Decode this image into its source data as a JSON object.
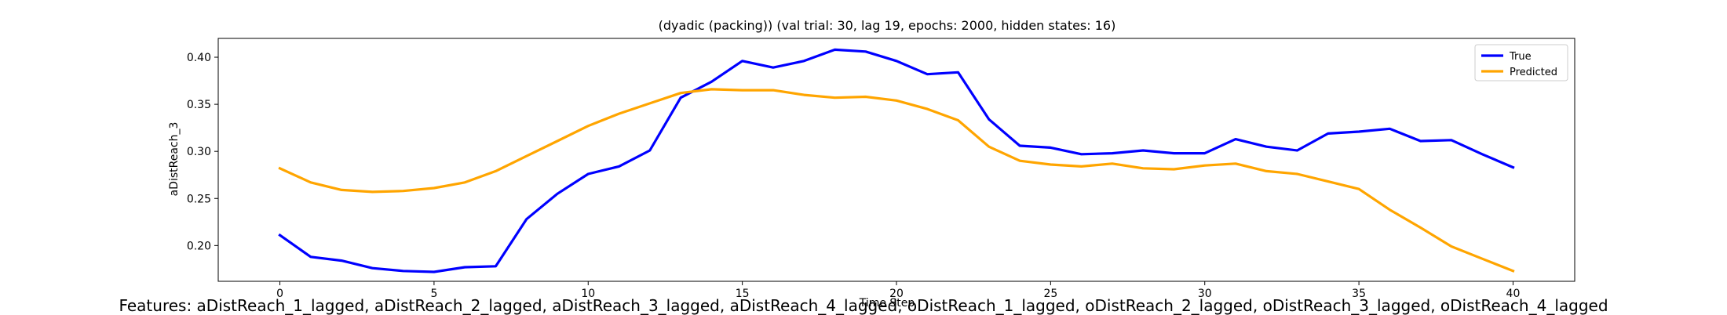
{
  "chart_data": {
    "type": "line",
    "title": "(dyadic (packing)) (val trial: 30, lag 19, epochs: 2000, hidden states: 16)",
    "xlabel": "Time Step",
    "ylabel": "aDistReach_3",
    "xlim": [
      -2,
      42
    ],
    "ylim": [
      0.162,
      0.42
    ],
    "xticks": [
      0,
      5,
      10,
      15,
      20,
      25,
      30,
      35,
      40
    ],
    "xtick_labels": [
      "0",
      "5",
      "10",
      "15",
      "20",
      "25",
      "30",
      "35",
      "40"
    ],
    "yticks": [
      0.2,
      0.25,
      0.3,
      0.35,
      0.4
    ],
    "ytick_labels": [
      "0.20",
      "0.25",
      "0.30",
      "0.35",
      "0.40"
    ],
    "grid": false,
    "legend_position": "top-right",
    "x": [
      0,
      1,
      2,
      3,
      4,
      5,
      6,
      7,
      8,
      9,
      10,
      11,
      12,
      13,
      14,
      15,
      16,
      17,
      18,
      19,
      20,
      21,
      22,
      23,
      24,
      25,
      26,
      27,
      28,
      29,
      30,
      31,
      32,
      33,
      34,
      35,
      36,
      37,
      38,
      39,
      40
    ],
    "series": [
      {
        "name": "True",
        "color": "#0000ff",
        "values": [
          0.211,
          0.188,
          0.184,
          0.176,
          0.173,
          0.172,
          0.177,
          0.178,
          0.228,
          0.255,
          0.276,
          0.284,
          0.301,
          0.357,
          0.374,
          0.396,
          0.389,
          0.396,
          0.408,
          0.406,
          0.396,
          0.382,
          0.384,
          0.334,
          0.306,
          0.304,
          0.297,
          0.298,
          0.301,
          0.298,
          0.298,
          0.313,
          0.305,
          0.301,
          0.319,
          0.321,
          0.324,
          0.311,
          0.312,
          0.297,
          0.283
        ]
      },
      {
        "name": "Predicted",
        "color": "#ffa500",
        "values": [
          0.282,
          0.267,
          0.259,
          0.257,
          0.258,
          0.261,
          0.267,
          0.279,
          0.295,
          0.311,
          0.327,
          0.34,
          0.351,
          0.362,
          0.366,
          0.365,
          0.365,
          0.36,
          0.357,
          0.358,
          0.354,
          0.345,
          0.333,
          0.305,
          0.29,
          0.286,
          0.284,
          0.287,
          0.282,
          0.281,
          0.285,
          0.287,
          0.279,
          0.276,
          0.268,
          0.26,
          0.238,
          0.219,
          0.199,
          0.186,
          0.173
        ]
      }
    ]
  },
  "footer_text": "Features: aDistReach_1_lagged, aDistReach_2_lagged, aDistReach_3_lagged, aDistReach_4_lagged, oDistReach_1_lagged, oDistReach_2_lagged, oDistReach_3_lagged, oDistReach_4_lagged"
}
